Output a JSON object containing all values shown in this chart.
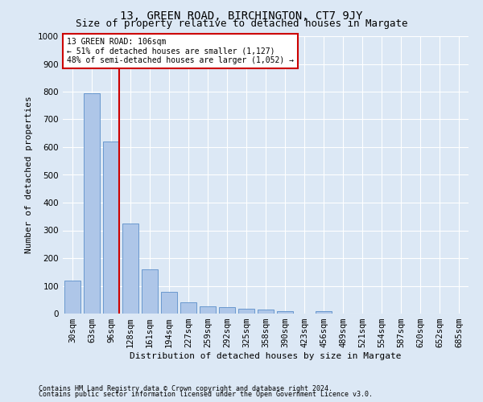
{
  "title": "13, GREEN ROAD, BIRCHINGTON, CT7 9JY",
  "subtitle": "Size of property relative to detached houses in Margate",
  "xlabel": "Distribution of detached houses by size in Margate",
  "ylabel": "Number of detached properties",
  "footnote1": "Contains HM Land Registry data © Crown copyright and database right 2024.",
  "footnote2": "Contains public sector information licensed under the Open Government Licence v3.0.",
  "categories": [
    "30sqm",
    "63sqm",
    "96sqm",
    "128sqm",
    "161sqm",
    "194sqm",
    "227sqm",
    "259sqm",
    "292sqm",
    "325sqm",
    "358sqm",
    "390sqm",
    "423sqm",
    "456sqm",
    "489sqm",
    "521sqm",
    "554sqm",
    "587sqm",
    "620sqm",
    "652sqm",
    "685sqm"
  ],
  "values": [
    120,
    795,
    620,
    325,
    160,
    78,
    40,
    25,
    22,
    17,
    15,
    8,
    0,
    10,
    0,
    0,
    0,
    0,
    0,
    0,
    0
  ],
  "bar_color": "#aec6e8",
  "bar_edge_color": "#5b8fc9",
  "vline_x_index": 2,
  "vline_color": "#cc0000",
  "annotation_text": "13 GREEN ROAD: 106sqm\n← 51% of detached houses are smaller (1,127)\n48% of semi-detached houses are larger (1,052) →",
  "annotation_box_color": "#ffffff",
  "annotation_box_edge": "#cc0000",
  "ylim": [
    0,
    1000
  ],
  "yticks": [
    0,
    100,
    200,
    300,
    400,
    500,
    600,
    700,
    800,
    900,
    1000
  ],
  "background_color": "#dce8f5",
  "grid_color": "#ffffff",
  "title_fontsize": 10,
  "subtitle_fontsize": 9,
  "axis_label_fontsize": 8,
  "tick_fontsize": 7.5,
  "annotation_fontsize": 7,
  "footnote_fontsize": 6
}
